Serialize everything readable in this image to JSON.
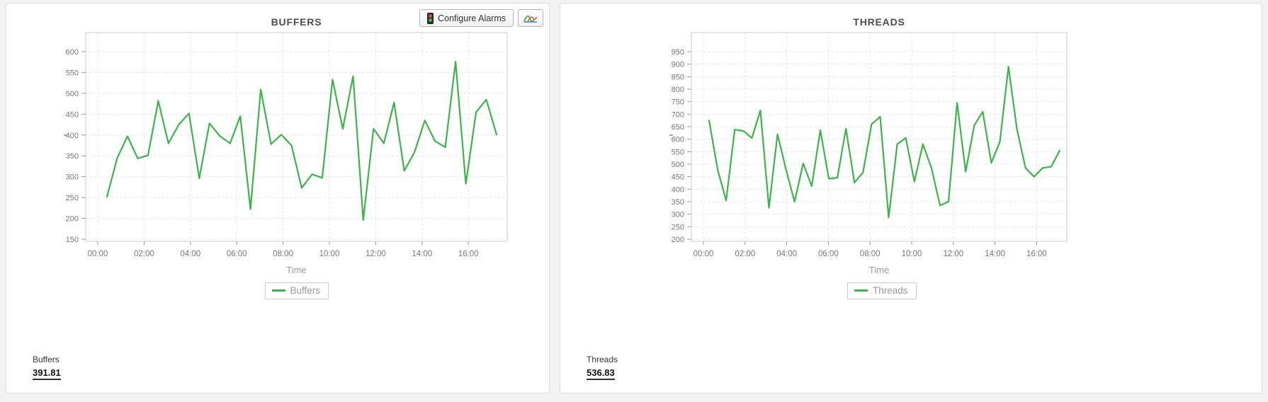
{
  "toolbar": {
    "configure_alarms_label": "Configure Alarms",
    "chart_button_icon": "compare-graphs-icon",
    "traffic_light_icon_colors": {
      "top": "#e14f47",
      "bottom": "#43b649"
    }
  },
  "colors": {
    "line_green": "#3cb44b",
    "grid": "#e3e3e3",
    "plot_border": "#cccccc",
    "axis_text": "#777777",
    "tick_mark": "#999999",
    "title_text": "#4c4c4c",
    "xlabel_text": "#999999",
    "legend_text": "#999999"
  },
  "panels": [
    {
      "title": "BUFFERS",
      "legend_label": "Buffers",
      "xlabel": "Time",
      "stat_label": "Buffers",
      "stat_value": "391.81"
    },
    {
      "title": "THREADS",
      "legend_label": "Threads",
      "xlabel": "Time",
      "stat_label": "Threads",
      "stat_value": "536.83"
    }
  ],
  "chart_data": [
    {
      "type": "line",
      "title": "BUFFERS",
      "xlabel": "Time",
      "legend": [
        "Buffers"
      ],
      "legend_position": "bottom",
      "grid": "dashed",
      "ylim": [
        150,
        600
      ],
      "y_ticks": [
        150,
        200,
        250,
        300,
        350,
        400,
        450,
        500,
        550,
        600
      ],
      "x_tick_labels": [
        "00:00",
        "02:00",
        "04:00",
        "06:00",
        "08:00",
        "10:00",
        "12:00",
        "14:00",
        "16:00"
      ],
      "x_range_hours": [
        0,
        17.1
      ],
      "values": [
        252,
        345,
        397,
        344,
        351,
        482,
        380,
        425,
        452,
        296,
        428,
        398,
        380,
        445,
        222,
        509,
        378,
        401,
        375,
        273,
        306,
        297,
        533,
        415,
        541,
        196,
        415,
        380,
        478,
        314,
        359,
        435,
        385,
        371,
        576,
        283,
        455,
        485,
        401
      ],
      "current_value": 391.81
    },
    {
      "type": "line",
      "title": "THREADS",
      "xlabel": "Time",
      "legend": [
        "Threads"
      ],
      "legend_position": "bottom",
      "grid": "dashed",
      "ylim": [
        200,
        950
      ],
      "y_ticks": [
        200,
        250,
        300,
        350,
        400,
        450,
        500,
        550,
        600,
        650,
        700,
        750,
        800,
        850,
        900,
        950
      ],
      "x_tick_labels": [
        "00:00",
        "02:00",
        "04:00",
        "06:00",
        "08:00",
        "10:00",
        "12:00",
        "14:00",
        "16:00"
      ],
      "x_range_hours": [
        0,
        17.5
      ],
      "values": [
        675,
        478,
        355,
        638,
        633,
        605,
        715,
        325,
        620,
        477,
        350,
        503,
        412,
        636,
        442,
        446,
        642,
        426,
        467,
        660,
        690,
        287,
        580,
        605,
        430,
        580,
        485,
        335,
        350,
        745,
        470,
        655,
        710,
        505,
        590,
        890,
        640,
        485,
        450,
        485,
        490,
        555
      ],
      "current_value": 536.83
    }
  ]
}
